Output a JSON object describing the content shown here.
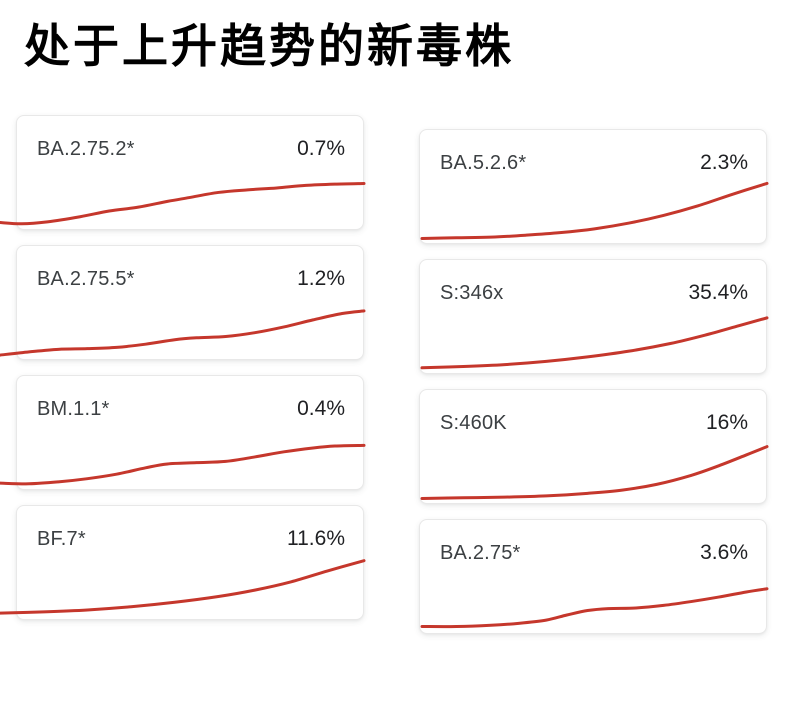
{
  "page": {
    "title": "处于上升趋势的新毒株",
    "background": "#ffffff"
  },
  "theme": {
    "line_color": "#c5372c",
    "title_color": "#000000",
    "label_color": "#3c4043",
    "value_color": "#202124",
    "card_border": "#e8e8e8"
  },
  "chart_data": [
    {
      "type": "line",
      "label": "BA.2.75.2*",
      "value": "0.7%",
      "x_range": [
        0,
        100
      ],
      "y_range": [
        0,
        100
      ],
      "grid": false,
      "legend": false,
      "points": [
        [
          0,
          7
        ],
        [
          6,
          5
        ],
        [
          13,
          8
        ],
        [
          22,
          16
        ],
        [
          30,
          25
        ],
        [
          38,
          31
        ],
        [
          46,
          40
        ],
        [
          52,
          46
        ],
        [
          60,
          54
        ],
        [
          68,
          58
        ],
        [
          76,
          61
        ],
        [
          84,
          65
        ],
        [
          92,
          67
        ],
        [
          100,
          68
        ]
      ]
    },
    {
      "type": "line",
      "label": "BA.5.2.6*",
      "value": "2.3%",
      "x_range": [
        0,
        100
      ],
      "y_range": [
        0,
        100
      ],
      "grid": false,
      "legend": false,
      "points": [
        [
          0,
          4
        ],
        [
          10,
          5
        ],
        [
          20,
          6
        ],
        [
          30,
          9
        ],
        [
          40,
          13
        ],
        [
          50,
          19
        ],
        [
          60,
          28
        ],
        [
          70,
          40
        ],
        [
          80,
          55
        ],
        [
          90,
          73
        ],
        [
          100,
          90
        ]
      ]
    },
    {
      "type": "line",
      "label": "BA.2.75.5*",
      "value": "1.2%",
      "x_range": [
        0,
        100
      ],
      "y_range": [
        0,
        100
      ],
      "grid": false,
      "legend": false,
      "points": [
        [
          0,
          3
        ],
        [
          8,
          8
        ],
        [
          16,
          12
        ],
        [
          24,
          13
        ],
        [
          32,
          15
        ],
        [
          40,
          20
        ],
        [
          48,
          27
        ],
        [
          54,
          30
        ],
        [
          62,
          32
        ],
        [
          70,
          38
        ],
        [
          78,
          47
        ],
        [
          86,
          58
        ],
        [
          94,
          68
        ],
        [
          100,
          72
        ]
      ]
    },
    {
      "type": "line",
      "label": "S:346x",
      "value": "35.4%",
      "x_range": [
        0,
        100
      ],
      "y_range": [
        0,
        100
      ],
      "grid": false,
      "legend": false,
      "points": [
        [
          0,
          5
        ],
        [
          12,
          7
        ],
        [
          24,
          10
        ],
        [
          36,
          15
        ],
        [
          48,
          22
        ],
        [
          60,
          31
        ],
        [
          72,
          43
        ],
        [
          82,
          56
        ],
        [
          92,
          71
        ],
        [
          100,
          83
        ]
      ]
    },
    {
      "type": "line",
      "label": "BM.1.1*",
      "value": "0.4%",
      "x_range": [
        0,
        100
      ],
      "y_range": [
        0,
        100
      ],
      "grid": false,
      "legend": false,
      "points": [
        [
          0,
          6
        ],
        [
          8,
          5
        ],
        [
          16,
          8
        ],
        [
          24,
          13
        ],
        [
          32,
          20
        ],
        [
          40,
          30
        ],
        [
          46,
          36
        ],
        [
          54,
          38
        ],
        [
          62,
          40
        ],
        [
          70,
          47
        ],
        [
          78,
          55
        ],
        [
          86,
          61
        ],
        [
          92,
          64
        ],
        [
          100,
          65
        ]
      ]
    },
    {
      "type": "line",
      "label": "S:460K",
      "value": "16%",
      "x_range": [
        0,
        100
      ],
      "y_range": [
        0,
        100
      ],
      "grid": false,
      "legend": false,
      "points": [
        [
          0,
          4
        ],
        [
          12,
          5
        ],
        [
          24,
          6
        ],
        [
          36,
          8
        ],
        [
          48,
          12
        ],
        [
          58,
          17
        ],
        [
          68,
          26
        ],
        [
          78,
          40
        ],
        [
          86,
          55
        ],
        [
          94,
          72
        ],
        [
          100,
          85
        ]
      ]
    },
    {
      "type": "line",
      "label": "BF.7*",
      "value": "11.6%",
      "x_range": [
        0,
        100
      ],
      "y_range": [
        0,
        100
      ],
      "grid": false,
      "legend": false,
      "points": [
        [
          0,
          6
        ],
        [
          12,
          8
        ],
        [
          24,
          11
        ],
        [
          36,
          16
        ],
        [
          48,
          23
        ],
        [
          60,
          32
        ],
        [
          70,
          42
        ],
        [
          80,
          55
        ],
        [
          90,
          72
        ],
        [
          100,
          88
        ]
      ]
    },
    {
      "type": "line",
      "label": "BA.2.75*",
      "value": "3.6%",
      "x_range": [
        0,
        100
      ],
      "y_range": [
        0,
        100
      ],
      "grid": false,
      "legend": false,
      "points": [
        [
          0,
          7
        ],
        [
          10,
          7
        ],
        [
          20,
          9
        ],
        [
          28,
          12
        ],
        [
          36,
          17
        ],
        [
          42,
          25
        ],
        [
          48,
          32
        ],
        [
          54,
          35
        ],
        [
          62,
          36
        ],
        [
          70,
          40
        ],
        [
          78,
          46
        ],
        [
          86,
          53
        ],
        [
          94,
          61
        ],
        [
          100,
          66
        ]
      ]
    }
  ]
}
